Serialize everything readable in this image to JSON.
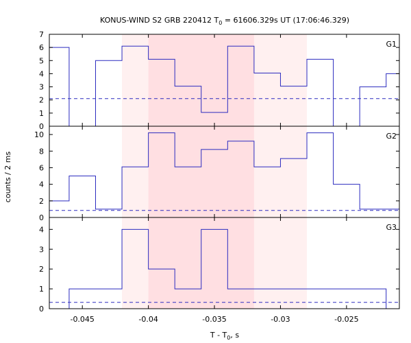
{
  "chart_data": {
    "type": "line",
    "title": {
      "prefix": "KONUS-WIND S2 GRB 220412 T",
      "sub": "0",
      "suffix": " = 61606.329s UT (17:06:46.329)"
    },
    "xlabel": {
      "prefix": "T - T",
      "sub": "0",
      "suffix": ", s"
    },
    "ylabel": "counts / 2 ms",
    "xlim": [
      -0.0475,
      -0.021
    ],
    "xticks": [
      -0.045,
      -0.04,
      -0.035,
      -0.03,
      -0.025
    ],
    "xtick_labels": [
      "-0.045",
      "-0.04",
      "-0.035",
      "-0.03",
      "-0.025"
    ],
    "bin_edges": [
      -0.048,
      -0.046,
      -0.044,
      -0.042,
      -0.04,
      -0.038,
      -0.036,
      -0.034,
      -0.032,
      -0.03,
      -0.028,
      -0.026,
      -0.024,
      -0.022,
      -0.02
    ],
    "shaded_regions": [
      {
        "from": -0.042,
        "to": -0.028,
        "color": "#fff0f0"
      },
      {
        "from": -0.04,
        "to": -0.032,
        "color": "#ffdfe2"
      }
    ],
    "panels": [
      {
        "name": "G1",
        "ylim": [
          0,
          7
        ],
        "yticks": [
          0,
          1,
          2,
          3,
          4,
          5,
          6,
          7
        ],
        "values": [
          6,
          0,
          5,
          6.1,
          5.1,
          3.05,
          1.05,
          6.1,
          4.05,
          3.05,
          5.1,
          0,
          3,
          4
        ],
        "background": 2.1
      },
      {
        "name": "G2",
        "ylim": [
          0,
          11
        ],
        "yticks": [
          0,
          2,
          4,
          6,
          8,
          10
        ],
        "values": [
          2,
          5,
          1,
          6.1,
          10.2,
          6.1,
          8.2,
          9.2,
          6.1,
          7.1,
          10.2,
          4,
          1,
          1
        ],
        "background": 0.85
      },
      {
        "name": "G3",
        "ylim": [
          0,
          4.6
        ],
        "yticks": [
          0,
          1,
          2,
          3,
          4
        ],
        "values": [
          0,
          1,
          1,
          4,
          2,
          1,
          4,
          1,
          1,
          1,
          1,
          1,
          1,
          0
        ],
        "background": 0.32
      }
    ]
  }
}
